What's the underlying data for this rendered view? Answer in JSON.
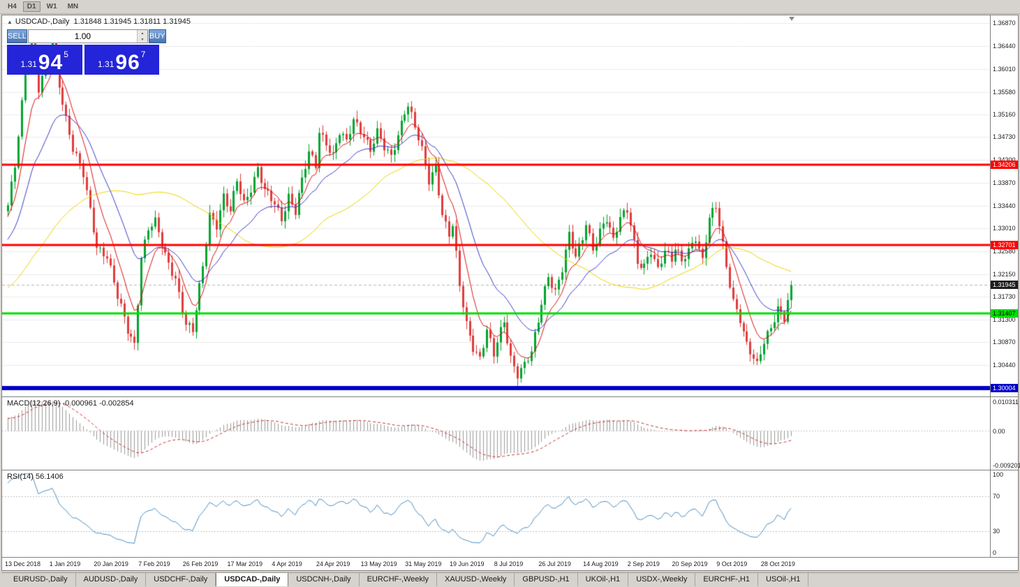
{
  "toolbar": {
    "buttons": [
      "H4",
      "D1",
      "W1",
      "MN"
    ]
  },
  "icons": {
    "collapse": "▲",
    "spin_up": "▲",
    "spin_down": "▼"
  },
  "chart": {
    "symbol_title": "USDCAD-,Daily",
    "ohlc_text": "1.31848 1.31945 1.31811 1.31945",
    "trade": {
      "sell_label": "SELL",
      "buy_label": "BUY",
      "volume": "1.00",
      "sell_price": {
        "small": "1.31",
        "big": "94",
        "sup": "5"
      },
      "buy_price": {
        "small": "1.31",
        "big": "96",
        "sup": "7"
      }
    }
  },
  "macd": {
    "label": "MACD(12,26,9) -0.000961 -0.002854"
  },
  "rsi": {
    "label": "RSI(14) 56.1406"
  },
  "tabs": [
    {
      "label": "EURUSD-,Daily",
      "active": false
    },
    {
      "label": "AUDUSD-,Daily",
      "active": false
    },
    {
      "label": "USDCHF-,Daily",
      "active": false
    },
    {
      "label": "USDCAD-,Daily",
      "active": true
    },
    {
      "label": "USDCNH-,Daily",
      "active": false
    },
    {
      "label": "EURCHF-,Weekly",
      "active": false
    },
    {
      "label": "XAUUSD-,Weekly",
      "active": false
    },
    {
      "label": "GBPUSD-,H1",
      "active": false
    },
    {
      "label": "UKOil-,H1",
      "active": false
    },
    {
      "label": "USDX-,Weekly",
      "active": false
    },
    {
      "label": "EURCHF-,H1",
      "active": false
    },
    {
      "label": "USOil-,H1",
      "active": false
    }
  ],
  "chart_data": {
    "type": "candlestick",
    "symbol": "USDCAD",
    "timeframe": "Daily",
    "title": "USDCAD-,Daily",
    "ohlc_display": [
      1.31848,
      1.31945,
      1.31811,
      1.31945
    ],
    "bars": 230,
    "last_close": 1.31945,
    "price_range": {
      "max": 1.3702,
      "min": 1.2985
    },
    "price_ticks": [
      "1.36870",
      "1.36440",
      "1.36010",
      "1.35580",
      "1.35160",
      "1.34730",
      "1.34300",
      "1.33870",
      "1.33440",
      "1.33010",
      "1.32580",
      "1.32150",
      "1.31730",
      "1.31300",
      "1.30870",
      "1.30440"
    ],
    "levels": [
      {
        "price": 1.34206,
        "label": "1.34206",
        "color": "#ff0000",
        "line_width": 3,
        "text_color": "#ffffff"
      },
      {
        "price": 1.32701,
        "label": "1.32701",
        "color": "#ff0000",
        "line_width": 3,
        "text_color": "#ffffff"
      },
      {
        "price": 1.31407,
        "label": "1.31407",
        "color": "#00df00",
        "line_width": 3,
        "text_color": "#000000"
      },
      {
        "price": 1.30004,
        "label": "1.30004",
        "color": "#0000c8",
        "line_width": 6,
        "text_color": "#ffffff"
      }
    ],
    "current_price": {
      "price": 1.31945,
      "label": "1.31945",
      "bg": "#1c1c1c",
      "text_color": "#ffffff"
    },
    "time_labels": [
      {
        "text": "13 Dec 2018",
        "bar": 0
      },
      {
        "text": "1 Jan 2019",
        "bar": 13
      },
      {
        "text": "20 Jan 2019",
        "bar": 26
      },
      {
        "text": "7 Feb 2019",
        "bar": 39
      },
      {
        "text": "26 Feb 2019",
        "bar": 52
      },
      {
        "text": "17 Mar 2019",
        "bar": 65
      },
      {
        "text": "4 Apr 2019",
        "bar": 78
      },
      {
        "text": "24 Apr 2019",
        "bar": 91
      },
      {
        "text": "13 May 2019",
        "bar": 104
      },
      {
        "text": "31 May 2019",
        "bar": 117
      },
      {
        "text": "19 Jun 2019",
        "bar": 130
      },
      {
        "text": "8 Jul 2019",
        "bar": 143
      },
      {
        "text": "26 Jul 2019",
        "bar": 156
      },
      {
        "text": "14 Aug 2019",
        "bar": 169
      },
      {
        "text": "2 Sep 2019",
        "bar": 182
      },
      {
        "text": "20 Sep 2019",
        "bar": 195
      },
      {
        "text": "9 Oct 2019",
        "bar": 208
      },
      {
        "text": "28 Oct 2019",
        "bar": 221
      }
    ],
    "close_waypoints": [
      [
        -60,
        1.306
      ],
      [
        -45,
        1.312
      ],
      [
        -30,
        1.316
      ],
      [
        -20,
        1.318
      ],
      [
        -12,
        1.326
      ],
      [
        -6,
        1.332
      ],
      [
        -2,
        1.333
      ],
      [
        0,
        1.334
      ],
      [
        2,
        1.342
      ],
      [
        5,
        1.36
      ],
      [
        7,
        1.3645
      ],
      [
        9,
        1.356
      ],
      [
        11,
        1.36
      ],
      [
        13,
        1.3655
      ],
      [
        15,
        1.3575
      ],
      [
        17,
        1.351
      ],
      [
        19,
        1.345
      ],
      [
        22,
        1.34
      ],
      [
        26,
        1.327
      ],
      [
        29,
        1.325
      ],
      [
        32,
        1.317
      ],
      [
        35,
        1.311
      ],
      [
        37,
        1.3085
      ],
      [
        39,
        1.325
      ],
      [
        41,
        1.33
      ],
      [
        43,
        1.331
      ],
      [
        46,
        1.325
      ],
      [
        49,
        1.321
      ],
      [
        52,
        1.312
      ],
      [
        54,
        1.3105
      ],
      [
        57,
        1.323
      ],
      [
        59,
        1.333
      ],
      [
        61,
        1.331
      ],
      [
        63,
        1.336
      ],
      [
        65,
        1.333
      ],
      [
        67,
        1.339
      ],
      [
        69,
        1.335
      ],
      [
        71,
        1.338
      ],
      [
        73,
        1.3415
      ],
      [
        75,
        1.337
      ],
      [
        78,
        1.3345
      ],
      [
        80,
        1.332
      ],
      [
        82,
        1.3365
      ],
      [
        84,
        1.3335
      ],
      [
        86,
        1.339
      ],
      [
        88,
        1.344
      ],
      [
        90,
        1.342
      ],
      [
        91,
        1.3485
      ],
      [
        93,
        1.3465
      ],
      [
        95,
        1.344
      ],
      [
        97,
        1.348
      ],
      [
        99,
        1.346
      ],
      [
        101,
        1.3505
      ],
      [
        104,
        1.348
      ],
      [
        106,
        1.345
      ],
      [
        108,
        1.348
      ],
      [
        110,
        1.345
      ],
      [
        112,
        1.3435
      ],
      [
        114,
        1.348
      ],
      [
        116,
        1.3525
      ],
      [
        117,
        1.3535
      ],
      [
        119,
        1.349
      ],
      [
        121,
        1.3445
      ],
      [
        123,
        1.339
      ],
      [
        125,
        1.342
      ],
      [
        127,
        1.333
      ],
      [
        129,
        1.329
      ],
      [
        130,
        1.3305
      ],
      [
        132,
        1.319
      ],
      [
        134,
        1.312
      ],
      [
        136,
        1.308
      ],
      [
        138,
        1.306
      ],
      [
        140,
        1.311
      ],
      [
        142,
        1.306
      ],
      [
        143,
        1.3085
      ],
      [
        145,
        1.3125
      ],
      [
        147,
        1.306
      ],
      [
        149,
        1.303
      ],
      [
        151,
        1.3045
      ],
      [
        153,
        1.3065
      ],
      [
        155,
        1.3125
      ],
      [
        156,
        1.316
      ],
      [
        158,
        1.3215
      ],
      [
        160,
        1.3185
      ],
      [
        162,
        1.3225
      ],
      [
        164,
        1.3285
      ],
      [
        166,
        1.3245
      ],
      [
        168,
        1.3285
      ],
      [
        169,
        1.3315
      ],
      [
        171,
        1.3265
      ],
      [
        173,
        1.3295
      ],
      [
        175,
        1.3315
      ],
      [
        177,
        1.3275
      ],
      [
        179,
        1.3325
      ],
      [
        181,
        1.334
      ],
      [
        182,
        1.3315
      ],
      [
        184,
        1.3235
      ],
      [
        186,
        1.3225
      ],
      [
        188,
        1.3255
      ],
      [
        190,
        1.3225
      ],
      [
        192,
        1.3265
      ],
      [
        194,
        1.3245
      ],
      [
        195,
        1.3265
      ],
      [
        197,
        1.3235
      ],
      [
        199,
        1.3255
      ],
      [
        201,
        1.3285
      ],
      [
        203,
        1.3245
      ],
      [
        205,
        1.3325
      ],
      [
        207,
        1.334
      ],
      [
        208,
        1.3305
      ],
      [
        210,
        1.3225
      ],
      [
        212,
        1.3165
      ],
      [
        214,
        1.3135
      ],
      [
        216,
        1.3085
      ],
      [
        218,
        1.3055
      ],
      [
        219,
        1.304
      ],
      [
        221,
        1.3085
      ],
      [
        223,
        1.3115
      ],
      [
        225,
        1.3155
      ],
      [
        227,
        1.3135
      ],
      [
        229,
        1.31945
      ]
    ],
    "indicators": {
      "moving_averages": [
        {
          "period": 8,
          "color": "#dc1414"
        },
        {
          "period": 21,
          "color": "#3c3cc8"
        },
        {
          "period": 55,
          "color": "#eed500"
        }
      ],
      "macd": {
        "params": [
          12,
          26,
          9
        ],
        "values": [
          -0.000961,
          -0.002854
        ],
        "axis": [
          "0.010311",
          "0.00",
          "-0.009201"
        ]
      },
      "rsi": {
        "period": 14,
        "value": 56.1406,
        "ticks": [
          {
            "v": 100,
            "label": "100"
          },
          {
            "v": 70,
            "label": "70"
          },
          {
            "v": 30,
            "label": "30"
          },
          {
            "v": 0,
            "label": "0"
          }
        ],
        "upper": 70,
        "lower": 30
      }
    },
    "colors": {
      "up": "#00a42e",
      "down": "#e03c3c",
      "macd_hist": "#9a9a9a",
      "macd_signal": "#c83232",
      "rsi": "#4a90c4",
      "grid": "#ececec"
    }
  }
}
